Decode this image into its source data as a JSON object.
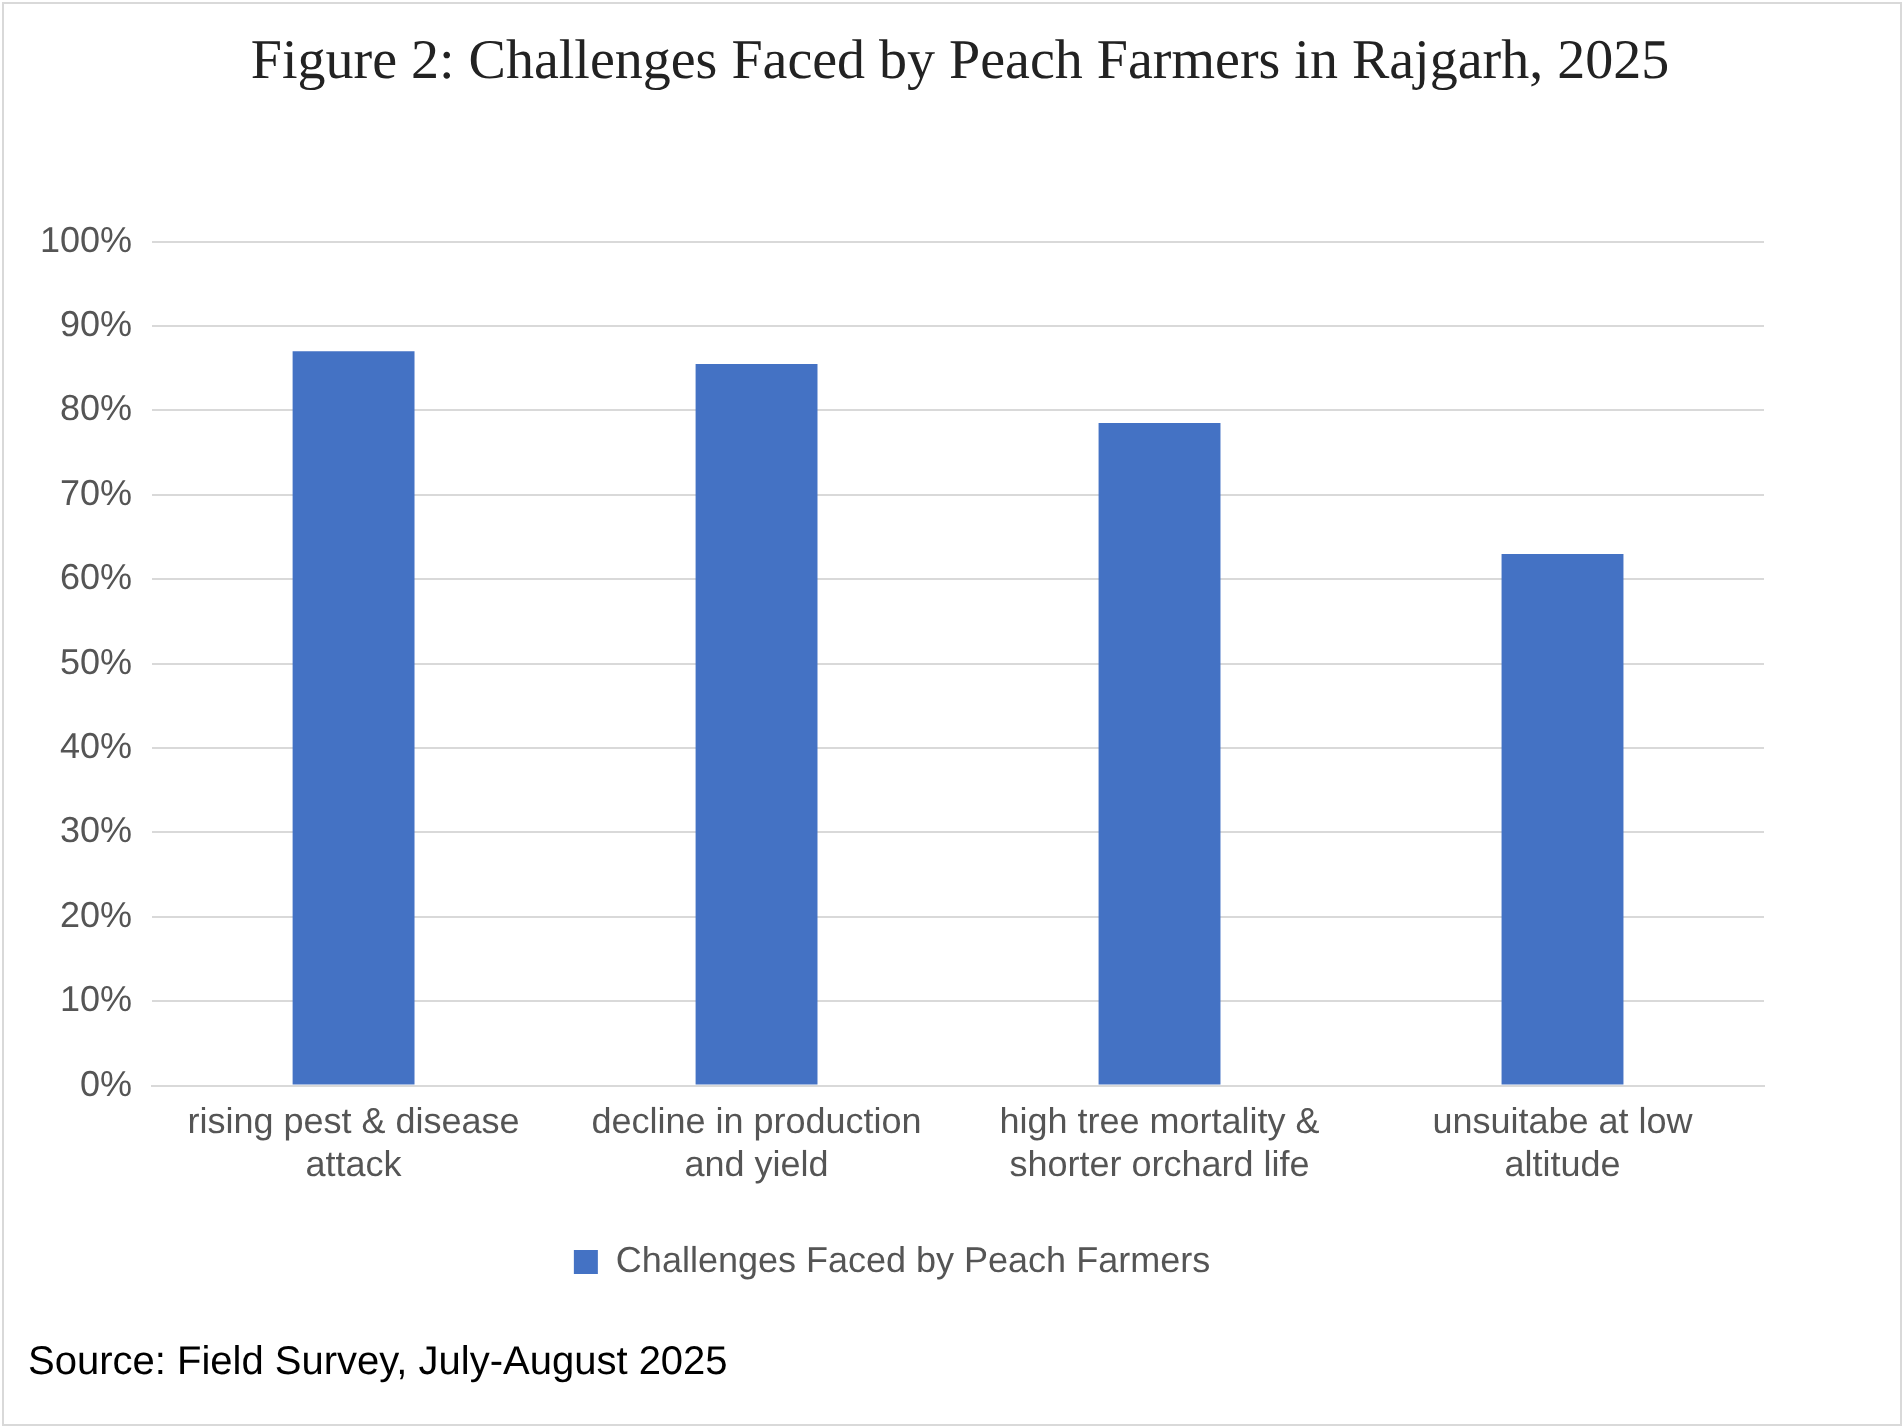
{
  "chart_data": {
    "type": "bar",
    "title": "Figure 2: Challenges Faced by Peach Farmers in Rajgarh, 2025",
    "categories": [
      "rising pest & disease attack",
      "decline in production and yield",
      "high tree mortality & shorter orchard life",
      "unsuitabe at low altitude"
    ],
    "series": [
      {
        "name": "Challenges Faced by Peach Farmers",
        "color": "#4472c4",
        "values": [
          87,
          85.5,
          78.5,
          63
        ]
      }
    ],
    "ylim": [
      0,
      100
    ],
    "yticks": [
      {
        "value": 0,
        "label": "0%"
      },
      {
        "value": 10,
        "label": "10%"
      },
      {
        "value": 20,
        "label": "20%"
      },
      {
        "value": 30,
        "label": "30%"
      },
      {
        "value": 40,
        "label": "40%"
      },
      {
        "value": 50,
        "label": "50%"
      },
      {
        "value": 60,
        "label": "60%"
      },
      {
        "value": 70,
        "label": "70%"
      },
      {
        "value": 80,
        "label": "80%"
      },
      {
        "value": 90,
        "label": "90%"
      },
      {
        "value": 100,
        "label": "100%"
      }
    ],
    "grid": "y",
    "legend": "bottom",
    "annotations": [
      "Source: Field Survey, July-August 2025"
    ]
  }
}
